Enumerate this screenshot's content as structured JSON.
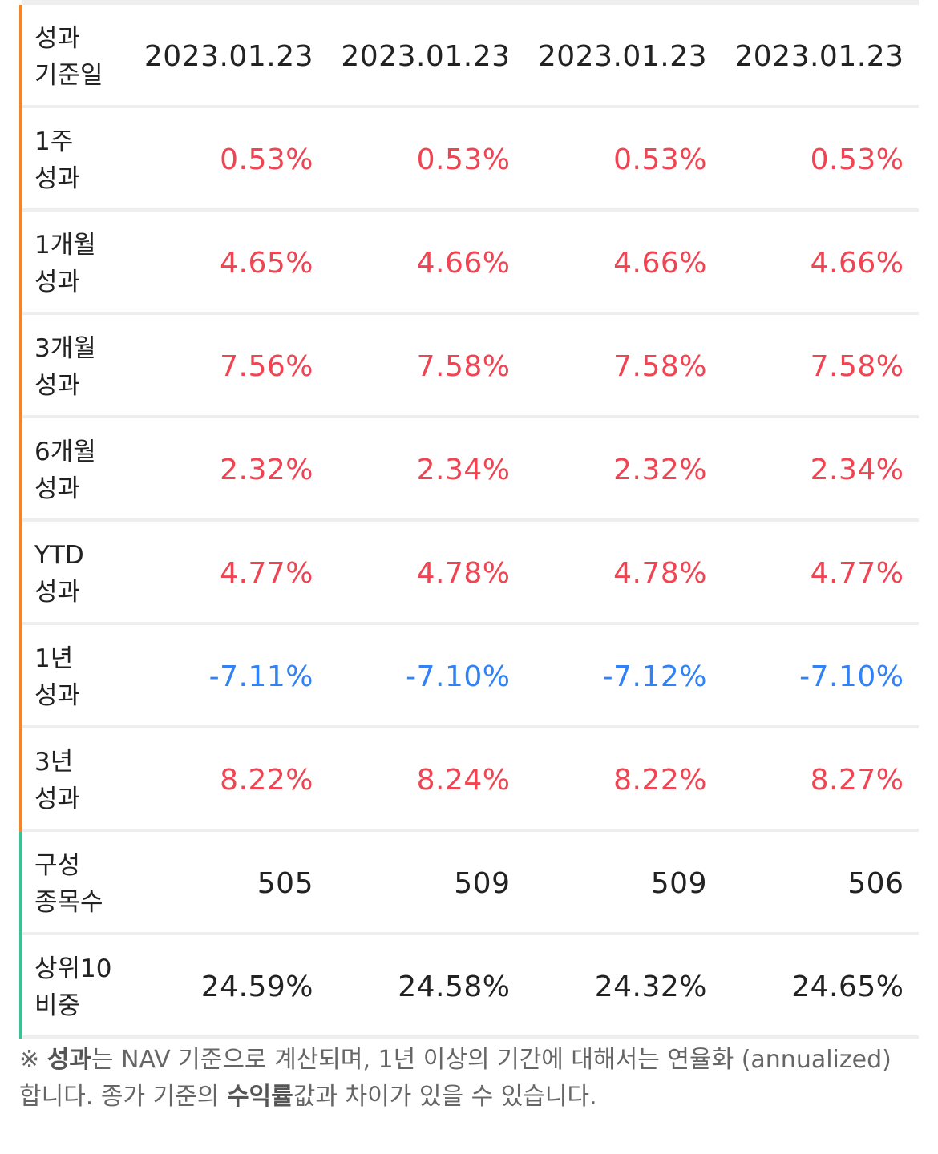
{
  "colors": {
    "performance_bar": "#f0852d",
    "info_bar": "#3bbf93",
    "positive": "#f04452",
    "negative": "#3182f6"
  },
  "rows": [
    {
      "label1": "성과",
      "label2": "기준일",
      "bar": "performance_bar",
      "values": [
        "2023.01.23",
        "2023.01.23",
        "2023.01.23",
        "2023.01.23"
      ],
      "tones": [
        "plain",
        "plain",
        "plain",
        "plain"
      ]
    },
    {
      "label1": "1주",
      "label2": "성과",
      "bar": "performance_bar",
      "values": [
        "0.53%",
        "0.53%",
        "0.53%",
        "0.53%"
      ],
      "tones": [
        "pos",
        "pos",
        "pos",
        "pos"
      ]
    },
    {
      "label1": "1개월",
      "label2": "성과",
      "bar": "performance_bar",
      "values": [
        "4.65%",
        "4.66%",
        "4.66%",
        "4.66%"
      ],
      "tones": [
        "pos",
        "pos",
        "pos",
        "pos"
      ]
    },
    {
      "label1": "3개월",
      "label2": "성과",
      "bar": "performance_bar",
      "values": [
        "7.56%",
        "7.58%",
        "7.58%",
        "7.58%"
      ],
      "tones": [
        "pos",
        "pos",
        "pos",
        "pos"
      ]
    },
    {
      "label1": "6개월",
      "label2": "성과",
      "bar": "performance_bar",
      "values": [
        "2.32%",
        "2.34%",
        "2.32%",
        "2.34%"
      ],
      "tones": [
        "pos",
        "pos",
        "pos",
        "pos"
      ]
    },
    {
      "label1": "YTD",
      "label2": "성과",
      "bar": "performance_bar",
      "values": [
        "4.77%",
        "4.78%",
        "4.78%",
        "4.77%"
      ],
      "tones": [
        "pos",
        "pos",
        "pos",
        "pos"
      ]
    },
    {
      "label1": "1년",
      "label2": "성과",
      "bar": "performance_bar",
      "values": [
        "-7.11%",
        "-7.10%",
        "-7.12%",
        "-7.10%"
      ],
      "tones": [
        "neg",
        "neg",
        "neg",
        "neg"
      ]
    },
    {
      "label1": "3년",
      "label2": "성과",
      "bar": "performance_bar",
      "values": [
        "8.22%",
        "8.24%",
        "8.22%",
        "8.27%"
      ],
      "tones": [
        "pos",
        "pos",
        "pos",
        "pos"
      ]
    },
    {
      "label1": "구성",
      "label2": "종목수",
      "bar": "info_bar",
      "values": [
        "505",
        "509",
        "509",
        "506"
      ],
      "tones": [
        "plain",
        "plain",
        "plain",
        "plain"
      ]
    },
    {
      "label1": "상위10",
      "label2": "비중",
      "bar": "info_bar",
      "values": [
        "24.59%",
        "24.58%",
        "24.32%",
        "24.65%"
      ],
      "tones": [
        "plain",
        "plain",
        "plain",
        "plain"
      ]
    }
  ],
  "note": {
    "prefix": "※ ",
    "bold1": "성과",
    "mid": "는 NAV 기준으로 계산되며, 1년 이상의 기간에 대해서는 연율화 (annualized) 합니다. 종가 기준의 ",
    "bold2": "수익률",
    "suffix": "값과 차이가 있을 수 있습니다."
  }
}
